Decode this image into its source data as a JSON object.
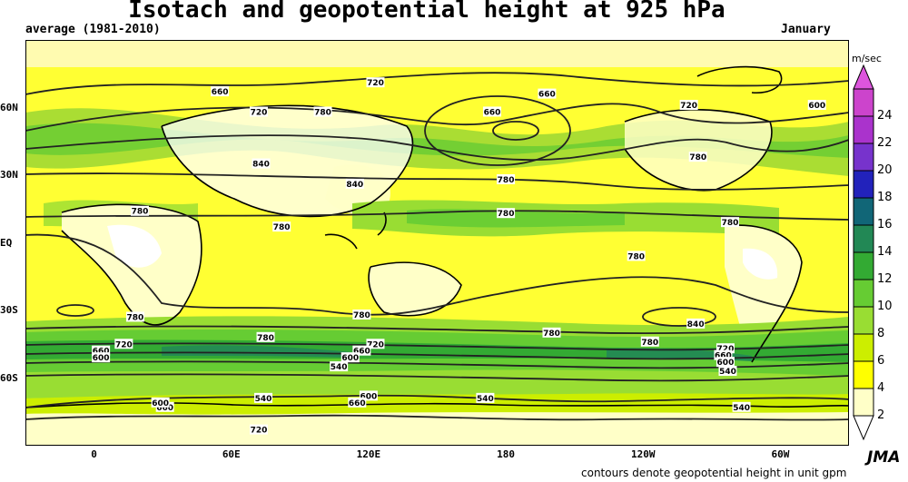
{
  "header": {
    "title": "Isotach and geopotential height at 925 hPa",
    "period": "average (1981-2010)",
    "month": "January"
  },
  "map": {
    "lat_labels": [
      {
        "text": "60N",
        "lat": 60
      },
      {
        "text": "30N",
        "lat": 30
      },
      {
        "text": "EQ",
        "lat": 0
      },
      {
        "text": "30S",
        "lat": -30
      },
      {
        "text": "60S",
        "lat": -60
      }
    ],
    "lon_labels": [
      {
        "text": "0",
        "lon": 0
      },
      {
        "text": "60E",
        "lon": 60
      },
      {
        "text": "120E",
        "lon": 120
      },
      {
        "text": "180",
        "lon": 180
      },
      {
        "text": "120W",
        "lon": 240
      },
      {
        "text": "60W",
        "lon": 300
      }
    ],
    "contour_labels": [
      {
        "text": "660",
        "lon": 55,
        "lat": 67
      },
      {
        "text": "720",
        "lon": 123,
        "lat": 71
      },
      {
        "text": "660",
        "lon": 198,
        "lat": 66
      },
      {
        "text": "720",
        "lon": 260,
        "lat": 61
      },
      {
        "text": "600",
        "lon": 316,
        "lat": 61
      },
      {
        "text": "720",
        "lon": 72,
        "lat": 58
      },
      {
        "text": "780",
        "lon": 100,
        "lat": 58
      },
      {
        "text": "660",
        "lon": 174,
        "lat": 58
      },
      {
        "text": "840",
        "lon": 73,
        "lat": 35
      },
      {
        "text": "840",
        "lon": 114,
        "lat": 26
      },
      {
        "text": "780",
        "lon": 180,
        "lat": 28
      },
      {
        "text": "780",
        "lon": 264,
        "lat": 38
      },
      {
        "text": "780",
        "lon": 20,
        "lat": 14
      },
      {
        "text": "780",
        "lon": 82,
        "lat": 7
      },
      {
        "text": "780",
        "lon": 180,
        "lat": 13
      },
      {
        "text": "780",
        "lon": 278,
        "lat": 9
      },
      {
        "text": "780",
        "lon": 237,
        "lat": -6
      },
      {
        "text": "780",
        "lon": 18,
        "lat": -33
      },
      {
        "text": "780",
        "lon": 117,
        "lat": -32
      },
      {
        "text": "840",
        "lon": 263,
        "lat": -36
      },
      {
        "text": "780",
        "lon": 200,
        "lat": -40
      },
      {
        "text": "780",
        "lon": 75,
        "lat": -42
      },
      {
        "text": "720",
        "lon": 13,
        "lat": -45
      },
      {
        "text": "660",
        "lon": 3,
        "lat": -48
      },
      {
        "text": "600",
        "lon": 3,
        "lat": -51
      },
      {
        "text": "720",
        "lon": 123,
        "lat": -45
      },
      {
        "text": "660",
        "lon": 117,
        "lat": -48
      },
      {
        "text": "600",
        "lon": 112,
        "lat": -51
      },
      {
        "text": "540",
        "lon": 107,
        "lat": -55
      },
      {
        "text": "780",
        "lon": 243,
        "lat": -44
      },
      {
        "text": "720",
        "lon": 276,
        "lat": -47
      },
      {
        "text": "660",
        "lon": 275,
        "lat": -50
      },
      {
        "text": "600",
        "lon": 276,
        "lat": -53
      },
      {
        "text": "540",
        "lon": 277,
        "lat": -57
      },
      {
        "text": "540",
        "lon": 74,
        "lat": -69
      },
      {
        "text": "600",
        "lon": 120,
        "lat": -68
      },
      {
        "text": "660",
        "lon": 115,
        "lat": -71
      },
      {
        "text": "540",
        "lon": 171,
        "lat": -69
      },
      {
        "text": "660",
        "lon": 31,
        "lat": -73
      },
      {
        "text": "600",
        "lon": 29,
        "lat": -71
      },
      {
        "text": "720",
        "lon": 72,
        "lat": -83
      },
      {
        "text": "540",
        "lon": 283,
        "lat": -73
      }
    ]
  },
  "colorbar": {
    "unit": "m/sec",
    "ticks": [
      "24",
      "22",
      "20",
      "18",
      "16",
      "14",
      "12",
      "10",
      "8",
      "6",
      "4",
      "2"
    ],
    "colors": [
      "#ffffff",
      "#ffffc8",
      "#ffff00",
      "#ccee00",
      "#99dd33",
      "#66cc33",
      "#33aa33",
      "#228855",
      "#116677",
      "#2222bb",
      "#7733cc",
      "#aa33cc",
      "#cc44cc",
      "#dd55dd"
    ]
  },
  "footer": {
    "logo": "JMA",
    "note": "contours denote geopotential height in unit gpm"
  }
}
